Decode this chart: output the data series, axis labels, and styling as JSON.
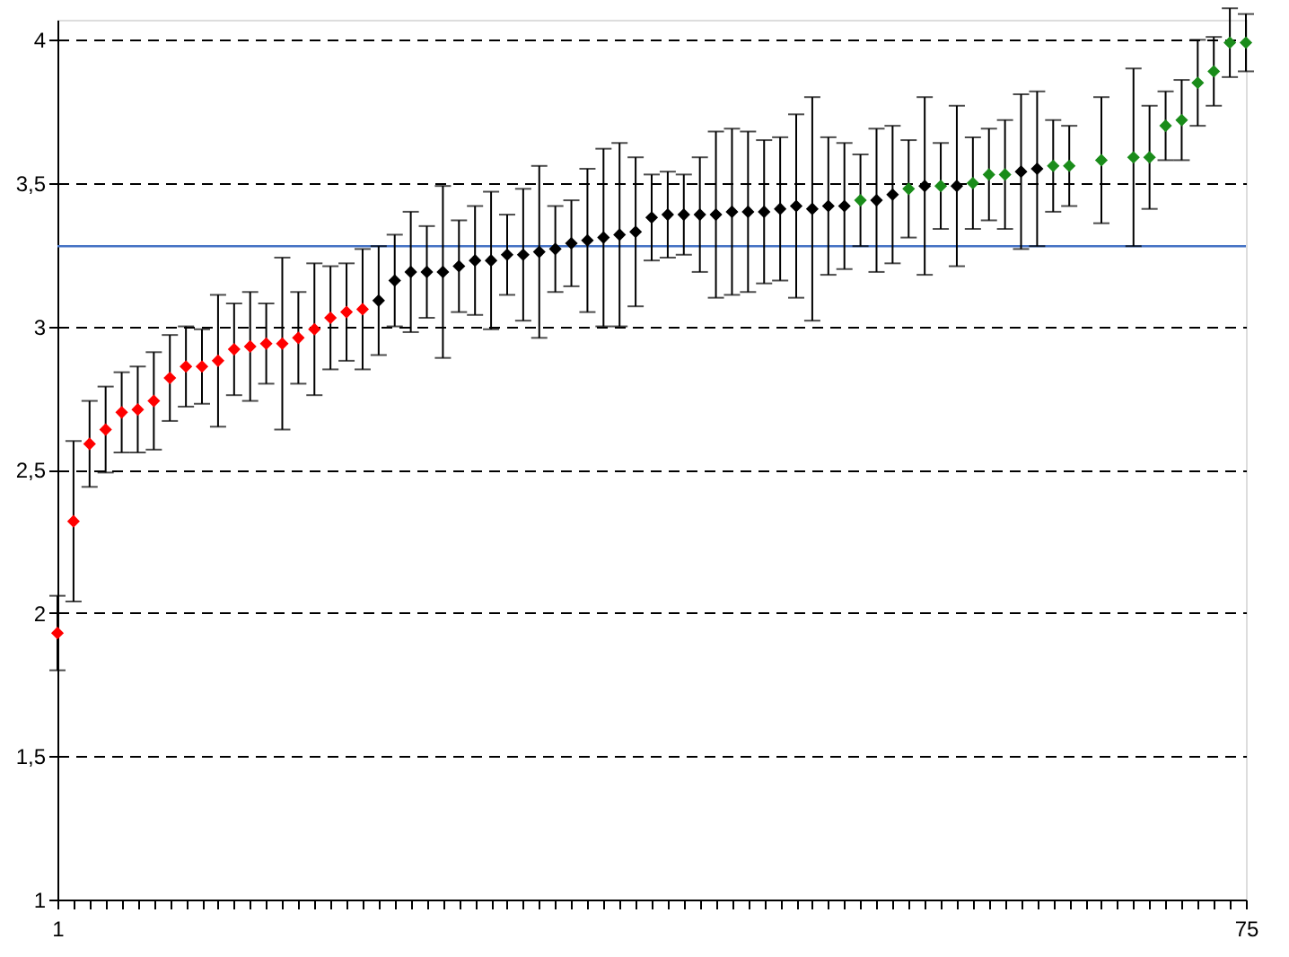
{
  "chart_data": {
    "type": "scatter",
    "marker": "diamond",
    "grid": "y",
    "xlim": [
      1,
      75
    ],
    "xticks": [
      1,
      {
        "value": 2,
        "label": null
      },
      {
        "value": 3,
        "label": null
      },
      {
        "value": 4,
        "label": null
      },
      {
        "value": 5,
        "label": null
      },
      {
        "value": 6,
        "label": null
      },
      {
        "value": 7,
        "label": null
      },
      {
        "value": 8,
        "label": null
      },
      {
        "value": 9,
        "label": null
      },
      {
        "value": 10,
        "label": null
      },
      {
        "value": 11,
        "label": null
      },
      {
        "value": 12,
        "label": null
      },
      {
        "value": 13,
        "label": null
      },
      {
        "value": 14,
        "label": null
      },
      {
        "value": 15,
        "label": null
      },
      {
        "value": 16,
        "label": null
      },
      {
        "value": 17,
        "label": null
      },
      {
        "value": 18,
        "label": null
      },
      {
        "value": 19,
        "label": null
      },
      {
        "value": 20,
        "label": null
      },
      {
        "value": 21,
        "label": null
      },
      {
        "value": 22,
        "label": null
      },
      {
        "value": 23,
        "label": null
      },
      {
        "value": 24,
        "label": null
      },
      {
        "value": 25,
        "label": null
      },
      {
        "value": 26,
        "label": null
      },
      {
        "value": 27,
        "label": null
      },
      {
        "value": 28,
        "label": null
      },
      {
        "value": 29,
        "label": null
      },
      {
        "value": 30,
        "label": null
      },
      {
        "value": 31,
        "label": null
      },
      {
        "value": 32,
        "label": null
      },
      {
        "value": 33,
        "label": null
      },
      {
        "value": 34,
        "label": null
      },
      {
        "value": 35,
        "label": null
      },
      {
        "value": 36,
        "label": null
      },
      {
        "value": 37,
        "label": null
      },
      {
        "value": 38,
        "label": null
      },
      {
        "value": 39,
        "label": null
      },
      {
        "value": 40,
        "label": null
      },
      {
        "value": 41,
        "label": null
      },
      {
        "value": 42,
        "label": null
      },
      {
        "value": 43,
        "label": null
      },
      {
        "value": 44,
        "label": null
      },
      {
        "value": 45,
        "label": null
      },
      {
        "value": 46,
        "label": null
      },
      {
        "value": 47,
        "label": null
      },
      {
        "value": 48,
        "label": null
      },
      {
        "value": 49,
        "label": null
      },
      {
        "value": 50,
        "label": null
      },
      {
        "value": 51,
        "label": null
      },
      {
        "value": 52,
        "label": null
      },
      {
        "value": 53,
        "label": null
      },
      {
        "value": 54,
        "label": null
      },
      {
        "value": 55,
        "label": null
      },
      {
        "value": 56,
        "label": null
      },
      {
        "value": 57,
        "label": null
      },
      {
        "value": 58,
        "label": null
      },
      {
        "value": 59,
        "label": null
      },
      {
        "value": 60,
        "label": null
      },
      {
        "value": 61,
        "label": null
      },
      {
        "value": 62,
        "label": null
      },
      {
        "value": 63,
        "label": null
      },
      {
        "value": 64,
        "label": null
      },
      {
        "value": 65,
        "label": null
      },
      {
        "value": 66,
        "label": null
      },
      {
        "value": 67,
        "label": null
      },
      {
        "value": 68,
        "label": null
      },
      {
        "value": 69,
        "label": null
      },
      {
        "value": 70,
        "label": null
      },
      {
        "value": 71,
        "label": null
      },
      {
        "value": 72,
        "label": null
      },
      {
        "value": 73,
        "label": null
      },
      {
        "value": 74,
        "label": null
      },
      75
    ],
    "ylim": [
      1,
      4.07
    ],
    "yticks": [
      1,
      {
        "value": 1.5,
        "label": "1,5"
      },
      2,
      {
        "value": 2.5,
        "label": "2,5"
      },
      3,
      {
        "value": 3.5,
        "label": "3,5"
      },
      4
    ],
    "ref_lines": [
      {
        "axis": "y",
        "value": 3.28,
        "color": "#4472c4",
        "line_style": "solid"
      }
    ],
    "series": [
      {
        "color": "#ff0000",
        "x": [
          1,
          2,
          3,
          4,
          5,
          6,
          7,
          8,
          9,
          10,
          11,
          12,
          13,
          14,
          15,
          16,
          17,
          18,
          19,
          20
        ],
        "values": [
          1.93,
          2.32,
          2.59,
          2.64,
          2.7,
          2.71,
          2.74,
          2.82,
          2.86,
          2.86,
          2.88,
          2.92,
          2.93,
          2.94,
          2.94,
          2.96,
          2.99,
          3.03,
          3.05,
          3.06
        ],
        "errors": [
          0.13,
          0.28,
          0.15,
          0.15,
          0.14,
          0.15,
          0.17,
          0.15,
          0.14,
          0.13,
          0.23,
          0.16,
          0.19,
          0.14,
          0.3,
          0.16,
          0.23,
          0.18,
          0.17,
          0.21
        ]
      },
      {
        "color": "#000000",
        "x": [
          21,
          22,
          23,
          24,
          25,
          26,
          27,
          28,
          29,
          30,
          31,
          32,
          33,
          34,
          35,
          36,
          37,
          38,
          39,
          40,
          41,
          42,
          43,
          44,
          45,
          46,
          47,
          48,
          49,
          50,
          52,
          53,
          55,
          57,
          61,
          62
        ],
        "values": [
          3.09,
          3.16,
          3.19,
          3.19,
          3.19,
          3.21,
          3.23,
          3.23,
          3.25,
          3.25,
          3.26,
          3.27,
          3.29,
          3.3,
          3.31,
          3.32,
          3.33,
          3.38,
          3.39,
          3.39,
          3.39,
          3.39,
          3.4,
          3.4,
          3.4,
          3.41,
          3.42,
          3.41,
          3.42,
          3.42,
          3.44,
          3.46,
          3.49,
          3.49,
          3.54,
          3.55
        ],
        "errors": [
          0.19,
          0.16,
          0.21,
          0.16,
          0.3,
          0.16,
          0.19,
          0.24,
          0.14,
          0.23,
          0.3,
          0.15,
          0.15,
          0.25,
          0.31,
          0.32,
          0.26,
          0.15,
          0.15,
          0.14,
          0.2,
          0.29,
          0.29,
          0.28,
          0.25,
          0.25,
          0.32,
          0.39,
          0.24,
          0.22,
          0.25,
          0.24,
          0.31,
          0.28,
          0.27,
          0.27
        ]
      },
      {
        "color": "#1a8c1a",
        "x": [
          51,
          54,
          56,
          58,
          59,
          60,
          63,
          64,
          68,
          69,
          70,
          71,
          72,
          73,
          74,
          75
        ],
        "values": [
          3.44,
          3.48,
          3.49,
          3.5,
          3.53,
          3.53,
          3.56,
          3.56,
          3.59,
          3.59,
          3.7,
          3.72,
          3.85,
          3.89,
          3.99,
          3.99
        ],
        "errors": [
          0.16,
          0.17,
          0.15,
          0.16,
          0.16,
          0.19,
          0.16,
          0.14,
          0.31,
          0.18,
          0.12,
          0.14,
          0.15,
          0.12,
          0.12,
          0.1
        ]
      },
      {
        "color": "#1a8c1a",
        "x": [
          66
        ],
        "values": [
          3.58
        ],
        "errors": [
          0.22
        ]
      }
    ]
  }
}
